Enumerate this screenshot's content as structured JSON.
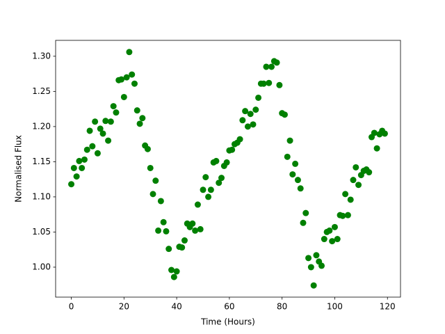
{
  "chart_data": {
    "type": "scatter",
    "xlabel": "Time (Hours)",
    "ylabel": "Normalised Flux",
    "color": "#008000",
    "x": [
      0,
      1,
      2,
      3,
      4,
      5,
      6,
      7,
      8,
      9,
      10,
      11,
      12,
      13,
      14,
      15,
      16,
      17,
      18,
      19,
      20,
      21,
      22,
      23,
      24,
      25,
      26,
      27,
      28,
      29,
      30,
      31,
      32,
      33,
      34,
      35,
      36,
      37,
      38,
      39,
      40,
      41,
      42,
      43,
      44,
      45,
      46,
      47,
      48,
      49,
      50,
      51,
      52,
      53,
      54,
      55,
      56,
      57,
      58,
      59,
      60,
      61,
      62,
      63,
      64,
      65,
      66,
      67,
      68,
      69,
      70,
      71,
      72,
      73,
      74,
      75,
      76,
      77,
      78,
      79,
      80,
      81,
      82,
      83,
      84,
      85,
      86,
      87,
      88,
      89,
      90,
      91,
      92,
      93,
      94,
      95,
      96,
      97,
      98,
      99,
      100,
      101,
      102,
      103,
      104,
      105,
      106,
      107,
      108,
      109,
      110,
      111,
      112,
      113,
      114,
      115,
      116,
      117,
      118,
      119
    ],
    "values": [
      1.118,
      1.141,
      1.129,
      1.151,
      1.141,
      1.153,
      1.167,
      1.194,
      1.172,
      1.207,
      1.162,
      1.197,
      1.19,
      1.208,
      1.18,
      1.207,
      1.229,
      1.22,
      1.266,
      1.267,
      1.242,
      1.27,
      1.306,
      1.274,
      1.261,
      1.223,
      1.204,
      1.212,
      1.173,
      1.168,
      1.141,
      1.104,
      1.123,
      1.052,
      1.094,
      1.064,
      1.051,
      1.026,
      0.996,
      0.986,
      0.994,
      1.029,
      1.028,
      1.038,
      1.062,
      1.057,
      1.062,
      1.052,
      1.089,
      1.054,
      1.11,
      1.128,
      1.1,
      1.11,
      1.149,
      1.151,
      1.12,
      1.127,
      1.144,
      1.149,
      1.166,
      1.167,
      1.175,
      1.177,
      1.182,
      1.209,
      1.222,
      1.2,
      1.218,
      1.203,
      1.224,
      1.241,
      1.261,
      1.261,
      1.285,
      1.262,
      1.285,
      1.293,
      1.291,
      1.259,
      1.219,
      1.217,
      1.157,
      1.18,
      1.132,
      1.147,
      1.124,
      1.112,
      1.063,
      1.077,
      1.013,
      1.0,
      0.974,
      1.017,
      1.008,
      1.002,
      1.04,
      1.05,
      1.052,
      1.037,
      1.057,
      1.04,
      1.074,
      1.073,
      1.104,
      1.074,
      1.096,
      1.124,
      1.142,
      1.117,
      1.131,
      1.137,
      1.139,
      1.135,
      1.185,
      1.191,
      1.169,
      1.189,
      1.194,
      1.19
    ],
    "xlim": [
      -5.95,
      124.95
    ],
    "xticks": [
      0,
      20,
      40,
      60,
      80,
      100,
      120
    ],
    "ylim": [
      0.9574,
      1.3226
    ],
    "yticks": [
      {
        "value": 1.0,
        "label": "1.00"
      },
      {
        "value": 1.05,
        "label": "1.05"
      },
      {
        "value": 1.1,
        "label": "1.10"
      },
      {
        "value": 1.15,
        "label": "1.15"
      },
      {
        "value": 1.2,
        "label": "1.20"
      },
      {
        "value": 1.25,
        "label": "1.25"
      },
      {
        "value": 1.3,
        "label": "1.30"
      }
    ],
    "grid": false
  }
}
